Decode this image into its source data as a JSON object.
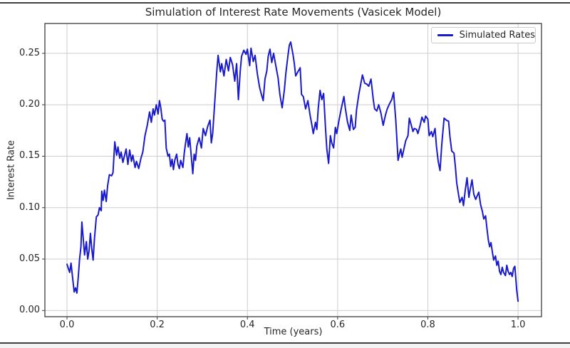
{
  "window": {
    "background": "#ffffff",
    "top_edge_color": "#404040",
    "bottom_edge_color": "#404040"
  },
  "chart_data": {
    "type": "line",
    "title": "Simulation of Interest Rate Movements (Vasicek Model)",
    "xlabel": "Time (years)",
    "ylabel": "Interest Rate",
    "grid": true,
    "grid_color": "#cdcdcd",
    "spine_color": "#3c3c3c",
    "text_color": "#262626",
    "legend": {
      "position": "upper right",
      "entries": [
        {
          "label": "Simulated Rates",
          "color": "#1a1acd"
        }
      ]
    },
    "xlim": [
      -0.049,
      1.052
    ],
    "ylim": [
      -0.006,
      0.279
    ],
    "xticks": [
      {
        "v": 0.0,
        "label": "0.0"
      },
      {
        "v": 0.2,
        "label": "0.2"
      },
      {
        "v": 0.4,
        "label": "0.4"
      },
      {
        "v": 0.6,
        "label": "0.6"
      },
      {
        "v": 0.8,
        "label": "0.8"
      },
      {
        "v": 1.0,
        "label": "1.0"
      }
    ],
    "yticks": [
      {
        "v": 0.0,
        "label": "0.00"
      },
      {
        "v": 0.05,
        "label": "0.05"
      },
      {
        "v": 0.1,
        "label": "0.10"
      },
      {
        "v": 0.15,
        "label": "0.15"
      },
      {
        "v": 0.2,
        "label": "0.20"
      },
      {
        "v": 0.25,
        "label": "0.25"
      }
    ],
    "series": [
      {
        "name": "Simulated Rates",
        "color": "#1a1acd",
        "line_width": 2,
        "points": [
          [
            0.0,
            0.045
          ],
          [
            0.006,
            0.037
          ],
          [
            0.009,
            0.046
          ],
          [
            0.013,
            0.03
          ],
          [
            0.016,
            0.018
          ],
          [
            0.019,
            0.022
          ],
          [
            0.022,
            0.017
          ],
          [
            0.025,
            0.032
          ],
          [
            0.028,
            0.05
          ],
          [
            0.031,
            0.062
          ],
          [
            0.033,
            0.086
          ],
          [
            0.036,
            0.07
          ],
          [
            0.039,
            0.054
          ],
          [
            0.043,
            0.067
          ],
          [
            0.046,
            0.05
          ],
          [
            0.049,
            0.058
          ],
          [
            0.052,
            0.075
          ],
          [
            0.055,
            0.06
          ],
          [
            0.058,
            0.049
          ],
          [
            0.061,
            0.07
          ],
          [
            0.065,
            0.091
          ],
          [
            0.069,
            0.093
          ],
          [
            0.072,
            0.1
          ],
          [
            0.076,
            0.097
          ],
          [
            0.077,
            0.116
          ],
          [
            0.08,
            0.107
          ],
          [
            0.083,
            0.117
          ],
          [
            0.087,
            0.106
          ],
          [
            0.09,
            0.121
          ],
          [
            0.094,
            0.132
          ],
          [
            0.099,
            0.131
          ],
          [
            0.102,
            0.134
          ],
          [
            0.106,
            0.164
          ],
          [
            0.11,
            0.151
          ],
          [
            0.113,
            0.159
          ],
          [
            0.117,
            0.148
          ],
          [
            0.12,
            0.154
          ],
          [
            0.124,
            0.144
          ],
          [
            0.131,
            0.157
          ],
          [
            0.135,
            0.142
          ],
          [
            0.139,
            0.156
          ],
          [
            0.143,
            0.145
          ],
          [
            0.146,
            0.151
          ],
          [
            0.151,
            0.139
          ],
          [
            0.154,
            0.145
          ],
          [
            0.159,
            0.138
          ],
          [
            0.164,
            0.148
          ],
          [
            0.168,
            0.154
          ],
          [
            0.173,
            0.17
          ],
          [
            0.178,
            0.18
          ],
          [
            0.183,
            0.193
          ],
          [
            0.187,
            0.183
          ],
          [
            0.191,
            0.196
          ],
          [
            0.194,
            0.19
          ],
          [
            0.198,
            0.2
          ],
          [
            0.202,
            0.191
          ],
          [
            0.205,
            0.204
          ],
          [
            0.208,
            0.197
          ],
          [
            0.211,
            0.186
          ],
          [
            0.214,
            0.184
          ],
          [
            0.217,
            0.185
          ],
          [
            0.22,
            0.158
          ],
          [
            0.224,
            0.15
          ],
          [
            0.227,
            0.152
          ],
          [
            0.23,
            0.14
          ],
          [
            0.233,
            0.147
          ],
          [
            0.236,
            0.137
          ],
          [
            0.239,
            0.146
          ],
          [
            0.243,
            0.152
          ],
          [
            0.246,
            0.142
          ],
          [
            0.249,
            0.138
          ],
          [
            0.252,
            0.146
          ],
          [
            0.257,
            0.139
          ],
          [
            0.26,
            0.153
          ],
          [
            0.263,
            0.163
          ],
          [
            0.266,
            0.172
          ],
          [
            0.269,
            0.159
          ],
          [
            0.272,
            0.168
          ],
          [
            0.276,
            0.148
          ],
          [
            0.279,
            0.133
          ],
          [
            0.282,
            0.152
          ],
          [
            0.285,
            0.146
          ],
          [
            0.288,
            0.16
          ],
          [
            0.293,
            0.168
          ],
          [
            0.298,
            0.158
          ],
          [
            0.302,
            0.177
          ],
          [
            0.307,
            0.17
          ],
          [
            0.312,
            0.179
          ],
          [
            0.317,
            0.185
          ],
          [
            0.32,
            0.163
          ],
          [
            0.323,
            0.172
          ],
          [
            0.326,
            0.192
          ],
          [
            0.329,
            0.212
          ],
          [
            0.332,
            0.232
          ],
          [
            0.335,
            0.248
          ],
          [
            0.34,
            0.232
          ],
          [
            0.343,
            0.24
          ],
          [
            0.348,
            0.228
          ],
          [
            0.353,
            0.244
          ],
          [
            0.358,
            0.233
          ],
          [
            0.362,
            0.246
          ],
          [
            0.367,
            0.239
          ],
          [
            0.372,
            0.223
          ],
          [
            0.376,
            0.24
          ],
          [
            0.38,
            0.205
          ],
          [
            0.384,
            0.232
          ],
          [
            0.387,
            0.247
          ],
          [
            0.392,
            0.253
          ],
          [
            0.397,
            0.249
          ],
          [
            0.4,
            0.254
          ],
          [
            0.405,
            0.238
          ],
          [
            0.408,
            0.255
          ],
          [
            0.413,
            0.242
          ],
          [
            0.417,
            0.248
          ],
          [
            0.422,
            0.23
          ],
          [
            0.427,
            0.217
          ],
          [
            0.431,
            0.21
          ],
          [
            0.435,
            0.204
          ],
          [
            0.439,
            0.225
          ],
          [
            0.443,
            0.233
          ],
          [
            0.446,
            0.247
          ],
          [
            0.45,
            0.254
          ],
          [
            0.454,
            0.241
          ],
          [
            0.458,
            0.25
          ],
          [
            0.463,
            0.238
          ],
          [
            0.468,
            0.226
          ],
          [
            0.472,
            0.21
          ],
          [
            0.477,
            0.197
          ],
          [
            0.482,
            0.215
          ],
          [
            0.485,
            0.23
          ],
          [
            0.49,
            0.248
          ],
          [
            0.493,
            0.258
          ],
          [
            0.496,
            0.261
          ],
          [
            0.501,
            0.249
          ],
          [
            0.504,
            0.24
          ],
          [
            0.507,
            0.228
          ],
          [
            0.512,
            0.232
          ],
          [
            0.517,
            0.236
          ],
          [
            0.52,
            0.21
          ],
          [
            0.524,
            0.208
          ],
          [
            0.529,
            0.196
          ],
          [
            0.534,
            0.204
          ],
          [
            0.539,
            0.19
          ],
          [
            0.543,
            0.18
          ],
          [
            0.546,
            0.172
          ],
          [
            0.551,
            0.183
          ],
          [
            0.554,
            0.176
          ],
          [
            0.557,
            0.196
          ],
          [
            0.561,
            0.214
          ],
          [
            0.565,
            0.205
          ],
          [
            0.569,
            0.211
          ],
          [
            0.573,
            0.178
          ],
          [
            0.576,
            0.157
          ],
          [
            0.58,
            0.143
          ],
          [
            0.584,
            0.17
          ],
          [
            0.587,
            0.163
          ],
          [
            0.591,
            0.158
          ],
          [
            0.595,
            0.178
          ],
          [
            0.598,
            0.172
          ],
          [
            0.603,
            0.185
          ],
          [
            0.608,
            0.196
          ],
          [
            0.614,
            0.208
          ],
          [
            0.617,
            0.197
          ],
          [
            0.622,
            0.183
          ],
          [
            0.627,
            0.175
          ],
          [
            0.63,
            0.19
          ],
          [
            0.635,
            0.176
          ],
          [
            0.639,
            0.178
          ],
          [
            0.642,
            0.195
          ],
          [
            0.647,
            0.21
          ],
          [
            0.652,
            0.222
          ],
          [
            0.655,
            0.229
          ],
          [
            0.66,
            0.221
          ],
          [
            0.665,
            0.22
          ],
          [
            0.669,
            0.218
          ],
          [
            0.674,
            0.225
          ],
          [
            0.679,
            0.205
          ],
          [
            0.682,
            0.196
          ],
          [
            0.687,
            0.194
          ],
          [
            0.691,
            0.2
          ],
          [
            0.696,
            0.192
          ],
          [
            0.701,
            0.18
          ],
          [
            0.706,
            0.19
          ],
          [
            0.71,
            0.196
          ],
          [
            0.715,
            0.201
          ],
          [
            0.72,
            0.205
          ],
          [
            0.724,
            0.212
          ],
          [
            0.729,
            0.185
          ],
          [
            0.734,
            0.146
          ],
          [
            0.737,
            0.152
          ],
          [
            0.74,
            0.157
          ],
          [
            0.743,
            0.149
          ],
          [
            0.748,
            0.159
          ],
          [
            0.751,
            0.165
          ],
          [
            0.756,
            0.17
          ],
          [
            0.759,
            0.187
          ],
          [
            0.764,
            0.179
          ],
          [
            0.767,
            0.174
          ],
          [
            0.77,
            0.177
          ],
          [
            0.775,
            0.176
          ],
          [
            0.778,
            0.172
          ],
          [
            0.783,
            0.18
          ],
          [
            0.787,
            0.188
          ],
          [
            0.792,
            0.183
          ],
          [
            0.795,
            0.189
          ],
          [
            0.8,
            0.186
          ],
          [
            0.803,
            0.17
          ],
          [
            0.808,
            0.174
          ],
          [
            0.811,
            0.169
          ],
          [
            0.816,
            0.177
          ],
          [
            0.819,
            0.16
          ],
          [
            0.823,
            0.145
          ],
          [
            0.827,
            0.136
          ],
          [
            0.831,
            0.162
          ],
          [
            0.836,
            0.187
          ],
          [
            0.841,
            0.185
          ],
          [
            0.846,
            0.184
          ],
          [
            0.849,
            0.169
          ],
          [
            0.853,
            0.155
          ],
          [
            0.858,
            0.153
          ],
          [
            0.861,
            0.14
          ],
          [
            0.864,
            0.124
          ],
          [
            0.868,
            0.113
          ],
          [
            0.871,
            0.105
          ],
          [
            0.876,
            0.11
          ],
          [
            0.879,
            0.102
          ],
          [
            0.883,
            0.117
          ],
          [
            0.887,
            0.129
          ],
          [
            0.891,
            0.11
          ],
          [
            0.894,
            0.118
          ],
          [
            0.898,
            0.127
          ],
          [
            0.902,
            0.113
          ],
          [
            0.906,
            0.108
          ],
          [
            0.91,
            0.112
          ],
          [
            0.913,
            0.115
          ],
          [
            0.917,
            0.103
          ],
          [
            0.921,
            0.096
          ],
          [
            0.924,
            0.089
          ],
          [
            0.928,
            0.092
          ],
          [
            0.931,
            0.08
          ],
          [
            0.934,
            0.069
          ],
          [
            0.937,
            0.062
          ],
          [
            0.94,
            0.066
          ],
          [
            0.943,
            0.057
          ],
          [
            0.946,
            0.049
          ],
          [
            0.95,
            0.053
          ],
          [
            0.953,
            0.044
          ],
          [
            0.956,
            0.048
          ],
          [
            0.959,
            0.038
          ],
          [
            0.962,
            0.035
          ],
          [
            0.965,
            0.042
          ],
          [
            0.968,
            0.037
          ],
          [
            0.972,
            0.034
          ],
          [
            0.975,
            0.044
          ],
          [
            0.978,
            0.038
          ],
          [
            0.981,
            0.035
          ],
          [
            0.984,
            0.037
          ],
          [
            0.987,
            0.033
          ],
          [
            0.99,
            0.041
          ],
          [
            0.993,
            0.043
          ],
          [
            0.997,
            0.02
          ],
          [
            1.0,
            0.009
          ]
        ]
      }
    ]
  }
}
